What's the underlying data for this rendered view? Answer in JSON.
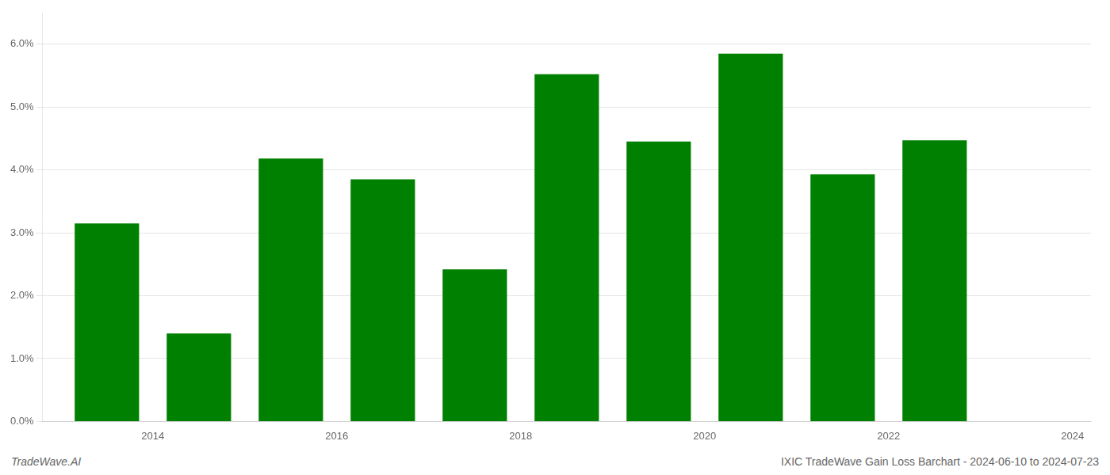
{
  "chart_data": {
    "type": "bar",
    "x": [
      2014,
      2015,
      2016,
      2017,
      2018,
      2019,
      2020,
      2021,
      2022,
      2023
    ],
    "values": [
      0.0315,
      0.014,
      0.0418,
      0.0385,
      0.0242,
      0.0552,
      0.0445,
      0.0585,
      0.0393,
      0.0447
    ],
    "color": "#008000",
    "xlim": [
      2013.3,
      2024.7
    ],
    "xticks": [
      {
        "value": 2014.5,
        "label": "2014"
      },
      {
        "value": 2016.5,
        "label": "2016"
      },
      {
        "value": 2018.5,
        "label": "2018"
      },
      {
        "value": 2020.5,
        "label": "2020"
      },
      {
        "value": 2022.5,
        "label": "2022"
      },
      {
        "value": 2024.5,
        "label": "2024"
      }
    ],
    "ylim": [
      0,
      0.065
    ],
    "yticks": [
      {
        "value": 0.0,
        "label": "0.0%"
      },
      {
        "value": 0.01,
        "label": "1.0%"
      },
      {
        "value": 0.02,
        "label": "2.0%"
      },
      {
        "value": 0.03,
        "label": "3.0%"
      },
      {
        "value": 0.04,
        "label": "4.0%"
      },
      {
        "value": 0.05,
        "label": "5.0%"
      },
      {
        "value": 0.06,
        "label": "6.0%"
      }
    ],
    "grid": true,
    "annotations": [
      "TradeWave.AI",
      "IXIC TradeWave Gain Loss Barchart - 2024-06-10 to 2024-07-23"
    ]
  }
}
